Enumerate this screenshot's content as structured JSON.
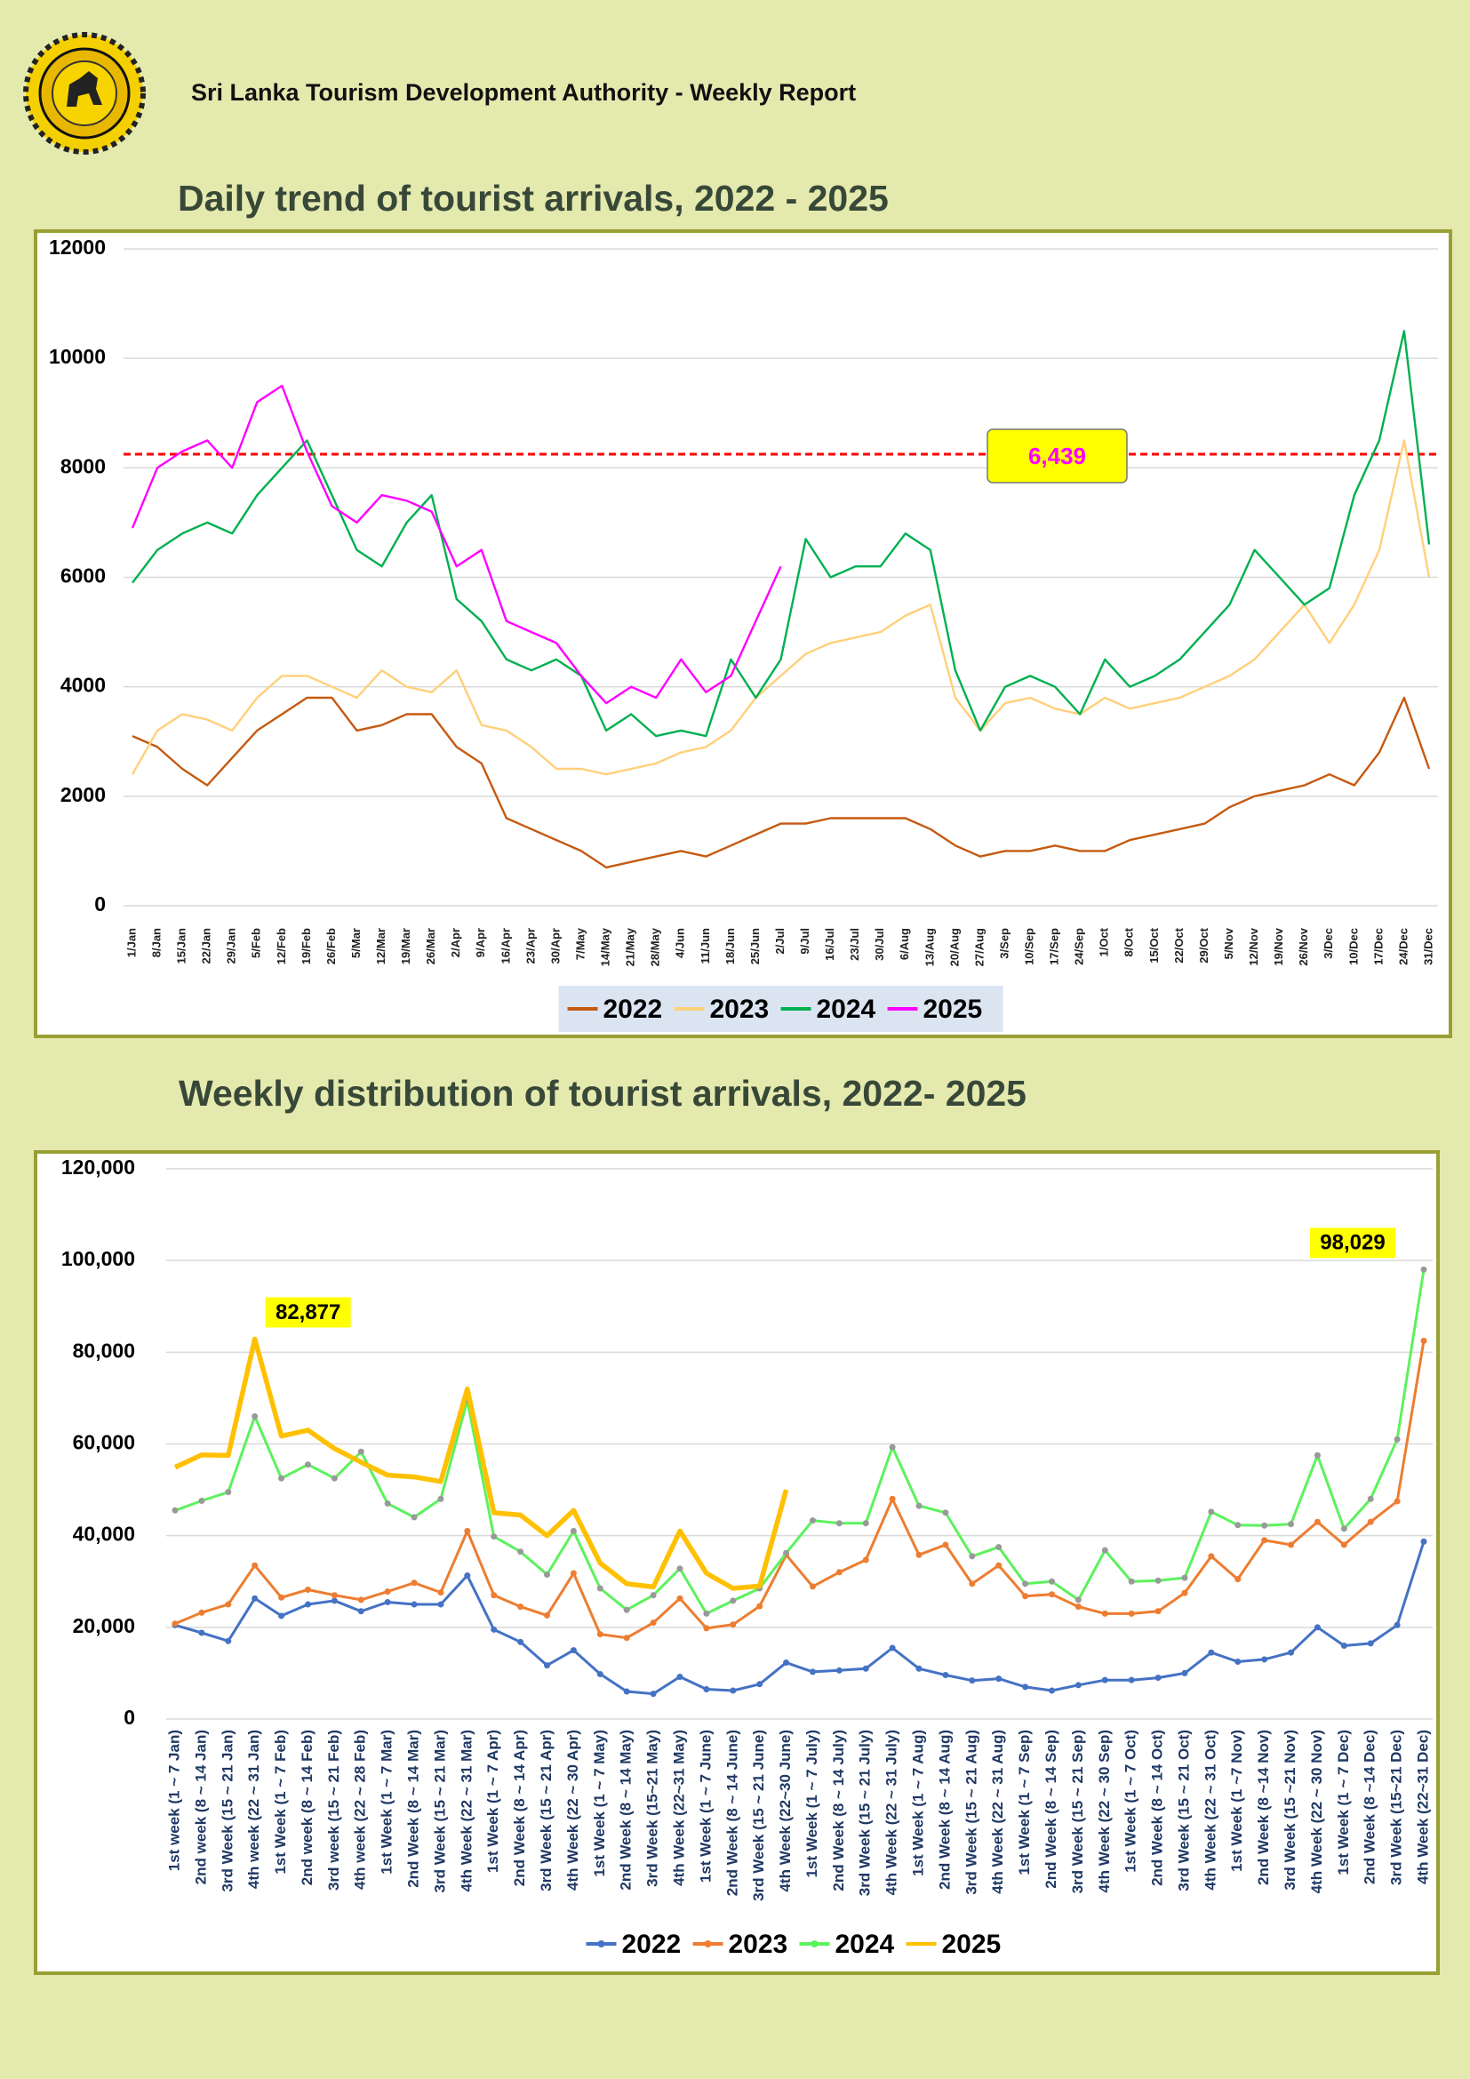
{
  "header": {
    "title": "Sri Lanka Tourism Development Authority - Weekly Report"
  },
  "chart_data": [
    {
      "type": "line",
      "title": "Daily trend of tourist arrivals, 2022 - 2025",
      "categories": [
        "1/Jan",
        "8/Jan",
        "15/Jan",
        "22/Jan",
        "29/Jan",
        "5/Feb",
        "12/Feb",
        "19/Feb",
        "26/Feb",
        "5/Mar",
        "12/Mar",
        "19/Mar",
        "26/Mar",
        "2/Apr",
        "9/Apr",
        "16/Apr",
        "23/Apr",
        "30/Apr",
        "7/May",
        "14/May",
        "21/May",
        "28/May",
        "4/Jun",
        "11/Jun",
        "18/Jun",
        "25/Jun",
        "2/Jul",
        "9/Jul",
        "16/Jul",
        "23/Jul",
        "30/Jul",
        "6/Aug",
        "13/Aug",
        "20/Aug",
        "27/Aug",
        "3/Sep",
        "10/Sep",
        "17/Sep",
        "24/Sep",
        "1/Oct",
        "8/Oct",
        "15/Oct",
        "22/Oct",
        "29/Oct",
        "5/Nov",
        "12/Nov",
        "19/Nov",
        "26/Nov",
        "3/Dec",
        "10/Dec",
        "17/Dec",
        "24/Dec",
        "31/Dec"
      ],
      "series": [
        {
          "name": "2022",
          "color": "#c55a11",
          "values": [
            3100,
            2900,
            2500,
            2200,
            2700,
            3200,
            3500,
            3800,
            3800,
            3200,
            3300,
            3500,
            3500,
            2900,
            2600,
            1600,
            1400,
            1200,
            1000,
            700,
            800,
            900,
            1000,
            900,
            1100,
            1300,
            1500,
            1500,
            1600,
            1600,
            1600,
            1600,
            1400,
            1100,
            900,
            1000,
            1000,
            1100,
            1000,
            1000,
            1200,
            1300,
            1400,
            1500,
            1800,
            2000,
            2100,
            2200,
            2400,
            2200,
            2800,
            3800,
            2500
          ]
        },
        {
          "name": "2023",
          "color": "#ffd07a",
          "values": [
            2400,
            3200,
            3500,
            3400,
            3200,
            3800,
            4200,
            4200,
            4000,
            3800,
            4300,
            4000,
            3900,
            4300,
            3300,
            3200,
            2900,
            2500,
            2500,
            2400,
            2500,
            2600,
            2800,
            2900,
            3200,
            3800,
            4200,
            4600,
            4800,
            4900,
            5000,
            5300,
            5500,
            3800,
            3200,
            3700,
            3800,
            3600,
            3500,
            3800,
            3600,
            3700,
            3800,
            4000,
            4200,
            4500,
            5000,
            5500,
            4800,
            5500,
            6500,
            8500,
            6000
          ]
        },
        {
          "name": "2024",
          "color": "#00b050",
          "values": [
            5900,
            6500,
            6800,
            7000,
            6800,
            7500,
            8000,
            8500,
            7500,
            6500,
            6200,
            7000,
            7500,
            5600,
            5200,
            4500,
            4300,
            4500,
            4200,
            3200,
            3500,
            3100,
            3200,
            3100,
            4500,
            3800,
            4500,
            6700,
            6000,
            6200,
            6200,
            6800,
            6500,
            4300,
            3200,
            4000,
            4200,
            4000,
            3500,
            4500,
            4000,
            4200,
            4500,
            5000,
            5500,
            6500,
            6000,
            5500,
            5800,
            7500,
            8500,
            10500,
            6600
          ]
        },
        {
          "name": "2025",
          "color": "#ff00ff",
          "values": [
            6900,
            8000,
            8300,
            8500,
            8000,
            9200,
            9500,
            8300,
            7300,
            7000,
            7500,
            7400,
            7200,
            6200,
            6500,
            5200,
            5000,
            4800,
            4200,
            3700,
            4000,
            3800,
            4500,
            3900,
            4200,
            5200,
            6200,
            null,
            null,
            null,
            null,
            null,
            null,
            null,
            null,
            null,
            null,
            null,
            null,
            null,
            null,
            null,
            null,
            null,
            null,
            null,
            null,
            null,
            null,
            null,
            null,
            null,
            null
          ]
        }
      ],
      "ylim": [
        0,
        12000
      ],
      "yticks": [
        0,
        2000,
        4000,
        6000,
        8000,
        10000,
        12000
      ],
      "grid": true,
      "reference_line": {
        "value": 8250,
        "color": "#ff0000"
      },
      "annotation": "6,439",
      "legend": "bottom"
    },
    {
      "type": "line",
      "title": "Weekly distribution of tourist arrivals, 2022- 2025",
      "categories": [
        "1st week (1 ~ 7 Jan)",
        "2nd week (8 ~ 14 Jan)",
        "3rd Week (15 ~ 21 Jan)",
        "4th week (22 ~ 31 Jan)",
        "1st Week (1 ~ 7 Feb)",
        "2nd week (8 ~ 14 Feb)",
        "3rd week (15 ~ 21 Feb)",
        "4th week (22 ~ 28 Feb)",
        "1st Week (1 ~ 7 Mar)",
        "2nd Week (8 ~ 14 Mar)",
        "3rd Week (15 ~ 21 Mar)",
        "4th Week (22 ~ 31 Mar)",
        "1st Week (1 ~ 7 Apr)",
        "2nd Week (8 ~ 14 Apr)",
        "3rd Week (15 ~ 21 Apr)",
        "4th Week (22 ~ 30 Apr)",
        "1st Week (1 ~ 7 May)",
        "2nd Week (8 ~ 14 May)",
        "3rd Week (15~21 May)",
        "4th Week (22~31 May)",
        "1st Week (1 ~ 7 June)",
        "2nd Week (8 ~ 14 June)",
        "3rd Week (15 ~ 21 June)",
        "4th Week (22~30 June)",
        "1st Week (1 ~ 7 July)",
        "2nd Week (8 ~ 14 July)",
        "3rd Week (15 ~ 21 July)",
        "4th Week (22 ~ 31 July)",
        "1st Week (1 ~ 7 Aug)",
        "2nd Week (8 ~ 14 Aug)",
        "3rd Week (15 ~ 21 Aug)",
        "4th Week (22 ~ 31 Aug)",
        "1st Week (1 ~ 7 Sep)",
        "2nd Week (8 ~ 14 Sep)",
        "3rd Week (15 ~ 21 Sep)",
        "4th Week (22 ~ 30 Sep)",
        "1st Week (1 ~ 7 Oct)",
        "2nd Week (8 ~ 14 Oct)",
        "3rd Week (15 ~ 21 Oct)",
        "4th Week (22 ~ 31 Oct)",
        "1st Week (1 ~7 Nov)",
        "2nd Week (8 ~14 Nov)",
        "3rd  Week (15 ~21 Nov)",
        "4th Week (22 ~ 30 Nov)",
        "1st Week (1 ~ 7 Dec)",
        "2nd Week (8 ~14 Dec)",
        "3rd Week (15~21 Dec)",
        "4th Week (22~31 Dec)"
      ],
      "series": [
        {
          "name": "2022",
          "color": "#4472c4",
          "values": [
            20500,
            18800,
            17000,
            26300,
            22500,
            25000,
            25800,
            23500,
            25500,
            25000,
            25000,
            31300,
            19500,
            16800,
            11700,
            15000,
            9800,
            6000,
            5500,
            9200,
            6500,
            6200,
            7600,
            12300,
            10300,
            10600,
            11000,
            15500,
            11000,
            9600,
            8400,
            8800,
            7000,
            6200,
            7400,
            8500,
            8500,
            9000,
            10000,
            14500,
            12500,
            13000,
            14500,
            20000,
            16000,
            16500,
            20500,
            38700
          ]
        },
        {
          "name": "2023",
          "color": "#ed7d31",
          "values": [
            20800,
            23200,
            25000,
            33500,
            26500,
            28200,
            27000,
            26000,
            27800,
            29700,
            27600,
            41000,
            27000,
            24500,
            22600,
            31800,
            18500,
            17700,
            21000,
            26300,
            19800,
            20600,
            24600,
            35800,
            28900,
            32000,
            34700,
            48000,
            35800,
            38000,
            29500,
            33500,
            26800,
            27200,
            24500,
            23000,
            23000,
            23500,
            27500,
            35500,
            30500,
            39000,
            38000,
            43000,
            38000,
            43000,
            47500,
            82500
          ]
        },
        {
          "name": "2024",
          "color": "#5cf25c",
          "values": [
            45500,
            47600,
            49500,
            66000,
            52500,
            55500,
            52500,
            58300,
            47000,
            44000,
            48000,
            69500,
            39800,
            36500,
            31500,
            41000,
            28500,
            23800,
            27000,
            32800,
            23000,
            25800,
            28500,
            36200,
            43300,
            42700,
            42700,
            59300,
            46500,
            45000,
            35500,
            37500,
            29500,
            30000,
            26000,
            36800,
            30000,
            30200,
            30800,
            45200,
            42300,
            42200,
            42500,
            57500,
            41500,
            48000,
            61000,
            98029
          ],
          "value_labels": [
            null,
            null,
            null,
            null,
            null,
            null,
            null,
            null,
            null,
            null,
            null,
            null,
            null,
            null,
            null,
            null,
            null,
            null,
            null,
            null,
            null,
            null,
            null,
            null,
            null,
            null,
            null,
            null,
            null,
            null,
            null,
            null,
            null,
            null,
            null,
            null,
            null,
            null,
            null,
            null,
            null,
            null,
            null,
            null,
            null,
            null,
            null,
            "98,029"
          ]
        },
        {
          "name": "2025",
          "color": "#ffc000",
          "markers": false,
          "values": [
            54900,
            57600,
            57500,
            82877,
            61700,
            63000,
            59000,
            56000,
            53200,
            52800,
            51800,
            72000,
            45000,
            44500,
            40000,
            45500,
            34000,
            29500,
            28800,
            41000,
            31800,
            28500,
            29000,
            50000,
            null,
            null,
            null,
            null,
            null,
            null,
            null,
            null,
            null,
            null,
            null,
            null,
            null,
            null,
            null,
            null,
            null,
            null,
            null,
            null,
            null,
            null,
            null,
            null
          ],
          "value_labels": [
            null,
            null,
            null,
            "82,877",
            null,
            null,
            null,
            null,
            null,
            null,
            null,
            null,
            null,
            null,
            null,
            null,
            null,
            null,
            null,
            null,
            null,
            null,
            null,
            null,
            null,
            null,
            null,
            null,
            null,
            null,
            null,
            null,
            null,
            null,
            null,
            null,
            null,
            null,
            null,
            null,
            null,
            null,
            null,
            null,
            null,
            null,
            null,
            null
          ]
        }
      ],
      "ylim": [
        0,
        120000
      ],
      "yticks": [
        0,
        {
          "value": 20000,
          "label": "20,000"
        },
        {
          "value": 40000,
          "label": "40,000"
        },
        {
          "value": 60000,
          "label": "60,000"
        },
        {
          "value": 80000,
          "label": "80,000"
        },
        {
          "value": 100000,
          "label": "100,000"
        },
        {
          "value": 120000,
          "label": "120,000"
        }
      ],
      "grid": true,
      "markers": true,
      "legend": "bottom"
    }
  ]
}
